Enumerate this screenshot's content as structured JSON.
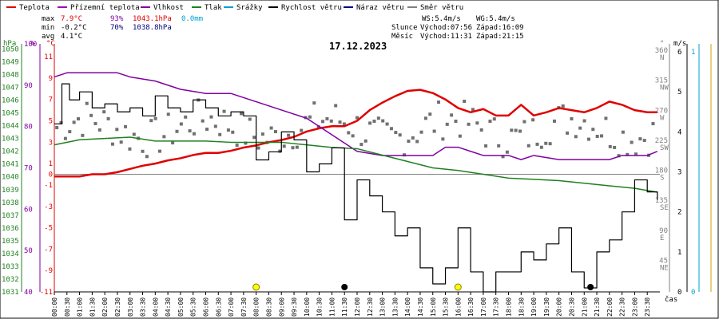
{
  "chart_data": {
    "type": "line",
    "title": "17.12.2023",
    "legend": [
      {
        "name": "Teplota",
        "color": "#e00000"
      },
      {
        "name": "Přízemní teplota",
        "color": "#a000c0"
      },
      {
        "name": "Vlhkost",
        "color": "#8000a0"
      },
      {
        "name": "Tlak",
        "color": "#208020"
      },
      {
        "name": "Srážky",
        "color": "#00a0d0"
      },
      {
        "name": "Rychlost větru",
        "color": "#000000"
      },
      {
        "name": "Náraz větru",
        "color": "#000080"
      },
      {
        "name": "Směr větru",
        "color": "#808080"
      }
    ],
    "stats": {
      "max_label": "max",
      "max_temp": "7.9°C",
      "max_hum": "93%",
      "max_press": "1043.1hPa",
      "max_rain": "0.0mm",
      "min_label": "min",
      "min_temp": "-0.2°C",
      "min_hum": "70%",
      "min_press": "1038.8hPa",
      "avg_label": "avg",
      "avg_temp": "4.1°C"
    },
    "info": {
      "ws": "WS:5.4m/s",
      "wg": "WG:5.4m/s",
      "sun_label": "Slunce",
      "sunrise": "Východ:07:56",
      "sunset": "Západ:16:09",
      "moon_label": "Měsíc",
      "moonrise": "Východ:11:31",
      "moonset": "Západ:21:15"
    },
    "axes": {
      "hpa_unit": "hPa",
      "pct_unit": "%",
      "temp_unit": "°C",
      "dir_unit": "°",
      "wind_unit": "m/s",
      "x_unit": "čas",
      "hpa_ticks": [
        1050,
        1049,
        1048,
        1047,
        1046,
        1045,
        1044,
        1043,
        1042,
        1041,
        1040,
        1039,
        1038,
        1037,
        1036,
        1035,
        1034,
        1033,
        1032,
        1031
      ],
      "pct_ticks": [
        100,
        90,
        80,
        70,
        60,
        50,
        40
      ],
      "temp_ticks": [
        11,
        9,
        7,
        5,
        3,
        1,
        0,
        -1,
        -3,
        -5,
        -7,
        -9,
        -11
      ],
      "dir_ticks": [
        {
          "v": 360,
          "d": "N"
        },
        {
          "v": 315,
          "d": "NW"
        },
        {
          "v": 270,
          "d": "W"
        },
        {
          "v": 225,
          "d": "SW"
        },
        {
          "v": 180,
          "d": "S"
        },
        {
          "v": 135,
          "d": "SE"
        },
        {
          "v": 90,
          "d": "E"
        },
        {
          "v": 45,
          "d": "NE"
        }
      ],
      "wind_ticks": [
        6,
        5,
        4,
        3,
        2,
        1,
        0
      ],
      "rain_ticks": [
        1,
        0
      ],
      "x_ticks": [
        "00:00",
        "00:30",
        "01:00",
        "01:30",
        "02:00",
        "02:30",
        "03:00",
        "03:30",
        "04:00",
        "04:30",
        "05:00",
        "05:30",
        "06:00",
        "06:30",
        "07:00",
        "07:30",
        "08:00",
        "08:30",
        "09:00",
        "09:30",
        "10:00",
        "10:30",
        "11:00",
        "11:30",
        "12:00",
        "12:30",
        "13:00",
        "13:30",
        "14:00",
        "14:30",
        "15:00",
        "15:30",
        "16:00",
        "16:30",
        "17:00",
        "17:30",
        "18:00",
        "18:30",
        "19:00",
        "19:30",
        "20:00",
        "20:30",
        "21:00",
        "21:30",
        "22:00",
        "22:30",
        "23:00",
        "23:30"
      ],
      "temp_range": [
        -11,
        12.2
      ],
      "hpa_range": [
        1031,
        1050.4
      ],
      "hum_range": [
        40,
        100
      ],
      "wind_range": [
        0,
        6.2
      ],
      "dir_range": [
        0,
        372
      ]
    },
    "series": [
      {
        "name": "Teplota",
        "unit": "°C",
        "points": [
          [
            0,
            -0.2
          ],
          [
            1,
            -0.2
          ],
          [
            1.5,
            0
          ],
          [
            2,
            0
          ],
          [
            2.5,
            0.2
          ],
          [
            3,
            0.5
          ],
          [
            3.5,
            0.8
          ],
          [
            4,
            1
          ],
          [
            4.5,
            1.3
          ],
          [
            5,
            1.5
          ],
          [
            5.5,
            1.8
          ],
          [
            6,
            2
          ],
          [
            6.5,
            2
          ],
          [
            7,
            2.2
          ],
          [
            7.5,
            2.5
          ],
          [
            8,
            2.7
          ],
          [
            8.5,
            3
          ],
          [
            9,
            3.2
          ],
          [
            9.5,
            3.5
          ],
          [
            10,
            4
          ],
          [
            10.5,
            4.3
          ],
          [
            11,
            4.5
          ],
          [
            11.5,
            4.5
          ],
          [
            12,
            5
          ],
          [
            12.5,
            6
          ],
          [
            13,
            6.7
          ],
          [
            13.5,
            7.3
          ],
          [
            14,
            7.8
          ],
          [
            14.5,
            7.9
          ],
          [
            15,
            7.6
          ],
          [
            15.5,
            7
          ],
          [
            16,
            6.2
          ],
          [
            16.5,
            5.8
          ],
          [
            17,
            6.1
          ],
          [
            17.5,
            5.5
          ],
          [
            18,
            5.5
          ],
          [
            18.5,
            6.5
          ],
          [
            19,
            5.5
          ],
          [
            19.5,
            5.8
          ],
          [
            20,
            6.2
          ],
          [
            20.5,
            6
          ],
          [
            21,
            5.8
          ],
          [
            21.5,
            6.2
          ],
          [
            22,
            6.8
          ],
          [
            22.5,
            6.5
          ],
          [
            23,
            6
          ],
          [
            23.5,
            5.8
          ],
          [
            23.9,
            5.8
          ]
        ]
      },
      {
        "name": "Vlhkost",
        "unit": "%",
        "points": [
          [
            0,
            92
          ],
          [
            0.5,
            93
          ],
          [
            1,
            93
          ],
          [
            2,
            93
          ],
          [
            2.5,
            93
          ],
          [
            3,
            92
          ],
          [
            4,
            91
          ],
          [
            5,
            89
          ],
          [
            6,
            88
          ],
          [
            7,
            88
          ],
          [
            8,
            86
          ],
          [
            9,
            84
          ],
          [
            10,
            82
          ],
          [
            10.5,
            80
          ],
          [
            11,
            78
          ],
          [
            11.5,
            76
          ],
          [
            12,
            74
          ],
          [
            13,
            73
          ],
          [
            14,
            73
          ],
          [
            15,
            73
          ],
          [
            15.5,
            75
          ],
          [
            16,
            75
          ],
          [
            16.5,
            74
          ],
          [
            17,
            73
          ],
          [
            17.5,
            73
          ],
          [
            18,
            73
          ],
          [
            18.5,
            72
          ],
          [
            19,
            73
          ],
          [
            20,
            72
          ],
          [
            20.5,
            72
          ],
          [
            21,
            72
          ],
          [
            22,
            72
          ],
          [
            22.5,
            73
          ],
          [
            23,
            73
          ],
          [
            23.5,
            73
          ],
          [
            23.9,
            74
          ]
        ]
      },
      {
        "name": "Tlak",
        "unit": "hPa",
        "points": [
          [
            0,
            1042.5
          ],
          [
            1,
            1042.9
          ],
          [
            2,
            1043.0
          ],
          [
            3,
            1043.1
          ],
          [
            4,
            1042.8
          ],
          [
            5,
            1042.8
          ],
          [
            6,
            1042.8
          ],
          [
            7,
            1042.7
          ],
          [
            8,
            1042.7
          ],
          [
            9,
            1042.7
          ],
          [
            10,
            1042.5
          ],
          [
            11,
            1042.3
          ],
          [
            12,
            1042.2
          ],
          [
            13,
            1041.7
          ],
          [
            14,
            1041.2
          ],
          [
            15,
            1040.7
          ],
          [
            16,
            1040.5
          ],
          [
            17,
            1040.2
          ],
          [
            18,
            1039.9
          ],
          [
            19,
            1039.8
          ],
          [
            20,
            1039.7
          ],
          [
            21,
            1039.5
          ],
          [
            22,
            1039.3
          ],
          [
            23,
            1039.1
          ],
          [
            23.9,
            1038.8
          ]
        ]
      },
      {
        "name": "Rychlost větru",
        "unit": "m/s",
        "step": true,
        "points": [
          [
            0,
            4.2
          ],
          [
            0.3,
            5.2
          ],
          [
            0.6,
            4.8
          ],
          [
            1,
            5.0
          ],
          [
            1.5,
            4.6
          ],
          [
            2,
            4.7
          ],
          [
            2.5,
            4.5
          ],
          [
            3,
            4.6
          ],
          [
            3.5,
            4.4
          ],
          [
            4,
            4.9
          ],
          [
            4.5,
            4.6
          ],
          [
            5,
            4.5
          ],
          [
            5.5,
            4.8
          ],
          [
            6,
            4.6
          ],
          [
            6.5,
            4.4
          ],
          [
            7,
            4.5
          ],
          [
            7.5,
            4.4
          ],
          [
            8,
            3.3
          ],
          [
            8.5,
            3.5
          ],
          [
            9,
            4.0
          ],
          [
            9.5,
            3.8
          ],
          [
            10,
            3.0
          ],
          [
            10.5,
            3.2
          ],
          [
            11,
            3.6
          ],
          [
            11.5,
            1.8
          ],
          [
            12,
            2.8
          ],
          [
            12.5,
            2.4
          ],
          [
            13,
            2.0
          ],
          [
            13.5,
            1.4
          ],
          [
            14,
            1.6
          ],
          [
            14.5,
            0.6
          ],
          [
            15,
            0.2
          ],
          [
            15.5,
            0.6
          ],
          [
            16,
            1.6
          ],
          [
            16.5,
            0.5
          ],
          [
            17,
            0
          ],
          [
            17.5,
            0.5
          ],
          [
            18,
            0.5
          ],
          [
            18.5,
            1.0
          ],
          [
            19,
            0.8
          ],
          [
            19.5,
            1.2
          ],
          [
            20,
            1.6
          ],
          [
            20.5,
            0.5
          ],
          [
            21,
            0.1
          ],
          [
            21.5,
            1.0
          ],
          [
            22,
            1.3
          ],
          [
            22.5,
            2.0
          ],
          [
            23,
            2.8
          ],
          [
            23.5,
            2.5
          ],
          [
            23.9,
            2.3
          ]
        ]
      }
    ],
    "wind_direction_samples": "scatter, approx. 180°–280° (mostly 210°–270°)",
    "events": [
      {
        "time": "08:00",
        "type": "sun"
      },
      {
        "time": "11:30",
        "type": "moon"
      },
      {
        "time": "16:00",
        "type": "sun"
      },
      {
        "time": "21:15",
        "type": "moon"
      }
    ]
  }
}
